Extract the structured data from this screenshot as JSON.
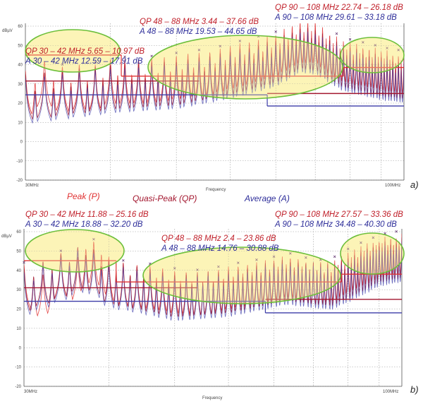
{
  "colors": {
    "peak": "#e03232",
    "quasi_peak": "#a3162e",
    "average": "#3c3ca8",
    "qp_text": "#c0202a",
    "a_text": "#2e2e9a",
    "highlight_fill": "#fbf3b0",
    "highlight_stroke": "#6cbf3a"
  },
  "legend": {
    "peak": "Peak (P)",
    "quasi_peak": "Quasi-Peak (QP)",
    "average": "Average (A)"
  },
  "chart_data": [
    {
      "panel": "a)",
      "type": "line",
      "xlabel": "Frequency",
      "ylabel": "dBµV",
      "xscale": "log",
      "xlim": [
        30,
        108
      ],
      "ylim": [
        -20,
        60
      ],
      "x_tick_labels": [
        "30MHz",
        "100MHz"
      ],
      "y_ticks": [
        60,
        50,
        40,
        30,
        20,
        10,
        0,
        -10,
        -20
      ],
      "grid": true,
      "harmonic_spacing_mhz": 1,
      "annotations": {
        "qp_low": "QP 30 – 42 MHz 5.65 – 10.97 dB",
        "a_low": "A 30 – 42 MHz 12.59 – 17.91 dB",
        "qp_mid": "QP 48 – 88 MHz 3.44 – 37.66 dB",
        "a_mid": "A 48 – 88 MHz 19.53 – 44.65 dB",
        "qp_high": "QP 90 – 108 MHz 22.74 – 26.18 dB",
        "a_high": "A 90 – 108 MHz 29.61 – 33.18 dB"
      },
      "series": [
        {
          "name": "Peak (P)",
          "peak_envelope": [
            [
              30,
              37
            ],
            [
              32,
              42
            ],
            [
              34,
              39
            ],
            [
              36,
              40
            ],
            [
              38,
              40
            ],
            [
              40,
              43
            ],
            [
              42,
              43
            ],
            [
              45,
              43
            ],
            [
              48,
              44
            ],
            [
              52,
              46
            ],
            [
              56,
              47
            ],
            [
              60,
              50
            ],
            [
              65,
              53
            ],
            [
              70,
              56
            ],
            [
              73,
              60
            ],
            [
              76,
              63
            ],
            [
              80,
              63
            ],
            [
              84,
              57
            ],
            [
              88,
              53
            ],
            [
              92,
              51
            ],
            [
              96,
              50
            ],
            [
              100,
              48
            ],
            [
              104,
              47
            ],
            [
              108,
              46
            ]
          ],
          "floor": [
            [
              30,
              11
            ],
            [
              50,
              11
            ],
            [
              70,
              13
            ],
            [
              80,
              14
            ],
            [
              88,
              8
            ],
            [
              108,
              8
            ]
          ]
        },
        {
          "name": "Quasi-Peak (QP)",
          "peak_envelope": [
            [
              30,
              35
            ],
            [
              40,
              40
            ],
            [
              50,
              42
            ],
            [
              60,
              47
            ],
            [
              70,
              53
            ],
            [
              76,
              60
            ],
            [
              80,
              59
            ],
            [
              88,
              50
            ],
            [
              100,
              45
            ],
            [
              108,
              43
            ]
          ],
          "floor": [
            [
              30,
              6
            ],
            [
              50,
              6
            ],
            [
              70,
              8
            ],
            [
              80,
              9
            ],
            [
              88,
              3
            ],
            [
              108,
              3
            ]
          ]
        },
        {
          "name": "Average (A)",
          "peak_envelope": [
            [
              30,
              33
            ],
            [
              40,
              38
            ],
            [
              50,
              40
            ],
            [
              60,
              45
            ],
            [
              70,
              51
            ],
            [
              76,
              58
            ],
            [
              80,
              57
            ],
            [
              88,
              48
            ],
            [
              100,
              43
            ],
            [
              108,
              41
            ]
          ],
          "floor": [
            [
              30,
              -1
            ],
            [
              50,
              1
            ],
            [
              70,
              4
            ],
            [
              80,
              5
            ],
            [
              88,
              -2
            ],
            [
              108,
              -3
            ]
          ]
        }
      ],
      "limit_lines": [
        {
          "detector": "peak",
          "segments": [
            [
              30,
              41.5,
              45
            ],
            [
              41.5,
              88,
              34
            ],
            [
              88,
              108,
              38.5
            ]
          ]
        },
        {
          "detector": "quasi_peak",
          "segments": [
            [
              30,
              54,
              31.5
            ],
            [
              68,
              108,
              25
            ]
          ]
        },
        {
          "detector": "average",
          "segments": [
            [
              30,
              68,
              24.3
            ],
            [
              68,
              108,
              18.5
            ]
          ]
        }
      ]
    },
    {
      "panel": "b)",
      "type": "line",
      "xlabel": "Frequency",
      "ylabel": "dBµV",
      "xscale": "log",
      "xlim": [
        30,
        108
      ],
      "ylim": [
        -20,
        60
      ],
      "x_tick_labels": [
        "30MHz",
        "100MHz"
      ],
      "y_ticks": [
        60,
        50,
        40,
        30,
        20,
        10,
        0,
        -10,
        -20
      ],
      "grid": true,
      "harmonic_spacing_mhz": 1,
      "annotations": {
        "qp_low": "QP 30 – 42 MHz 11.88 – 25.16 dB",
        "a_low": "A 30 – 42 MHz 18.88 – 32.20 dB",
        "qp_mid": "QP 48 – 88 MHz 2.4 – 23.86 dB",
        "a_mid": "A 48 – 88 MHz 14.76 – 30.88 dB",
        "qp_high": "QP 90 – 108 MHz 27.57 – 33.36 dB",
        "a_high": "A 90 – 108 MHz 34.48 – 40.30 dB"
      },
      "series": [
        {
          "name": "Peak (P)",
          "peak_envelope": [
            [
              30,
              43
            ],
            [
              32,
              38
            ],
            [
              34,
              49
            ],
            [
              36,
              47
            ],
            [
              37,
              57
            ],
            [
              38,
              55
            ],
            [
              39,
              54
            ],
            [
              40,
              47
            ],
            [
              42,
              44
            ],
            [
              44,
              43
            ],
            [
              47,
              42
            ],
            [
              50,
              40
            ],
            [
              55,
              39
            ],
            [
              60,
              42
            ],
            [
              65,
              44
            ],
            [
              70,
              46
            ],
            [
              73,
              48
            ],
            [
              76,
              47
            ],
            [
              80,
              44
            ],
            [
              85,
              45
            ],
            [
              90,
              50
            ],
            [
              95,
              54
            ],
            [
              100,
              57
            ],
            [
              104,
              59
            ],
            [
              108,
              59
            ]
          ],
          "floor": [
            [
              30,
              5
            ],
            [
              40,
              5
            ],
            [
              60,
              7
            ],
            [
              75,
              10
            ],
            [
              90,
              12
            ],
            [
              108,
              16
            ]
          ]
        },
        {
          "name": "Quasi-Peak (QP)",
          "peak_envelope": [
            [
              30,
              41
            ],
            [
              37,
              54
            ],
            [
              40,
              45
            ],
            [
              50,
              38
            ],
            [
              60,
              40
            ],
            [
              73,
              46
            ],
            [
              85,
              43
            ],
            [
              100,
              55
            ],
            [
              108,
              57
            ]
          ],
          "floor": [
            [
              30,
              -1
            ],
            [
              40,
              -1
            ],
            [
              60,
              2
            ],
            [
              75,
              5
            ],
            [
              90,
              8
            ],
            [
              108,
              13
            ]
          ]
        },
        {
          "name": "Average (A)",
          "peak_envelope": [
            [
              30,
              39
            ],
            [
              37,
              52
            ],
            [
              40,
              43
            ],
            [
              50,
              36
            ],
            [
              60,
              38
            ],
            [
              73,
              44
            ],
            [
              85,
              41
            ],
            [
              100,
              53
            ],
            [
              108,
              55
            ]
          ],
          "floor": [
            [
              30,
              -8
            ],
            [
              45,
              -9
            ],
            [
              60,
              -5
            ],
            [
              75,
              -2
            ],
            [
              90,
              0
            ],
            [
              108,
              14
            ]
          ]
        }
      ],
      "limit_lines": [
        {
          "detector": "peak",
          "segments": [
            [
              30,
              41,
              45
            ],
            [
              41,
              88,
              34
            ],
            [
              88,
              108,
              38
            ]
          ]
        },
        {
          "detector": "quasi_peak",
          "segments": [
            [
              30,
              54,
              31
            ],
            [
              68,
              108,
              25
            ]
          ]
        },
        {
          "detector": "average",
          "segments": [
            [
              30,
              68,
              24
            ],
            [
              68,
              108,
              18
            ]
          ]
        }
      ]
    }
  ]
}
